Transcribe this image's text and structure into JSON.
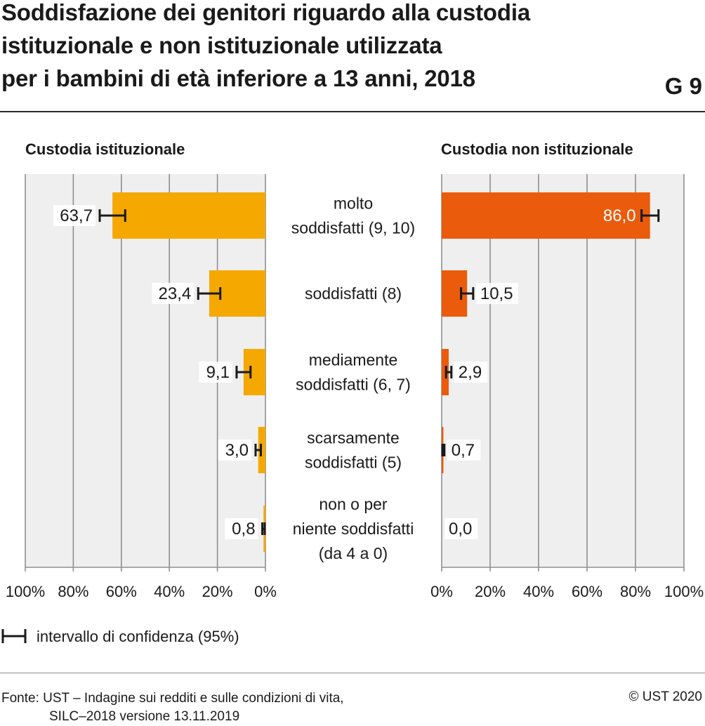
{
  "header": {
    "title_lines": [
      "Soddisfazione dei genitori riguardo alla custodia",
      "istituzionale e non istituzionale utilizzata",
      "per i bambini di età inferiore a 13 anni, 2018"
    ],
    "figure_id": "G 9"
  },
  "chart_data": [
    {
      "type": "bar",
      "title": "Custodia istituzionale",
      "orientation": "horizontal-reversed",
      "categories": [
        "molto soddisfatti (9, 10)",
        "soddisfatti (8)",
        "mediamente soddisfatti (6, 7)",
        "scarsamente soddisfatti (5)",
        "non o per niente soddisfatti (da 4 a 0)"
      ],
      "values": [
        63.7,
        23.4,
        9.1,
        3.0,
        0.8
      ],
      "labels": [
        "63,7",
        "23,4",
        "9,1",
        "3,0",
        "0,8"
      ],
      "ci": [
        [
          58.4,
          69.0
        ],
        [
          18.8,
          28.0
        ],
        [
          6.2,
          12.0
        ],
        [
          1.9,
          4.1
        ],
        [
          0.3,
          1.3
        ]
      ],
      "xlim": [
        0,
        100
      ],
      "ticks": [
        "100%",
        "80%",
        "60%",
        "40%",
        "20%",
        "0%"
      ],
      "color": "#f5a800",
      "grid": true
    },
    {
      "type": "bar",
      "title": "Custodia non istituzionale",
      "orientation": "horizontal",
      "categories": [
        "molto soddisfatti (9, 10)",
        "soddisfatti (8)",
        "mediamente soddisfatti (6, 7)",
        "scarsamente soddisfatti (5)",
        "non o per niente soddisfatti (da 4 a 0)"
      ],
      "values": [
        86.0,
        10.5,
        2.9,
        0.7,
        0.0
      ],
      "labels": [
        "86,0",
        "10,5",
        "2,9",
        "0,7",
        "0,0"
      ],
      "ci": [
        [
          82.5,
          89.5
        ],
        [
          8.0,
          13.0
        ],
        [
          1.8,
          4.0
        ],
        [
          0.3,
          1.1
        ],
        [
          0.0,
          0.0
        ]
      ],
      "xlim": [
        0,
        100
      ],
      "ticks": [
        "0%",
        "20%",
        "40%",
        "60%",
        "80%",
        "100%"
      ],
      "color": "#ea5b0c",
      "grid": true
    }
  ],
  "category_labels": [
    [
      "molto",
      "soddisfatti (9, 10)"
    ],
    [
      "soddisfatti (8)"
    ],
    [
      "mediamente",
      "soddisfatti (6, 7)"
    ],
    [
      "scarsamente",
      "soddisfatti (5)"
    ],
    [
      "non o per",
      "niente soddisfatti",
      "(da 4 a 0)"
    ]
  ],
  "legend": {
    "label": "intervallo di confidenza (95%)"
  },
  "footer": {
    "source_lines": [
      "Fonte: UST – Indagine sui redditi e sulle condizioni di vita,",
      "SILC–2018 versione 13.11.2019"
    ],
    "copyright": "© UST 2020"
  }
}
